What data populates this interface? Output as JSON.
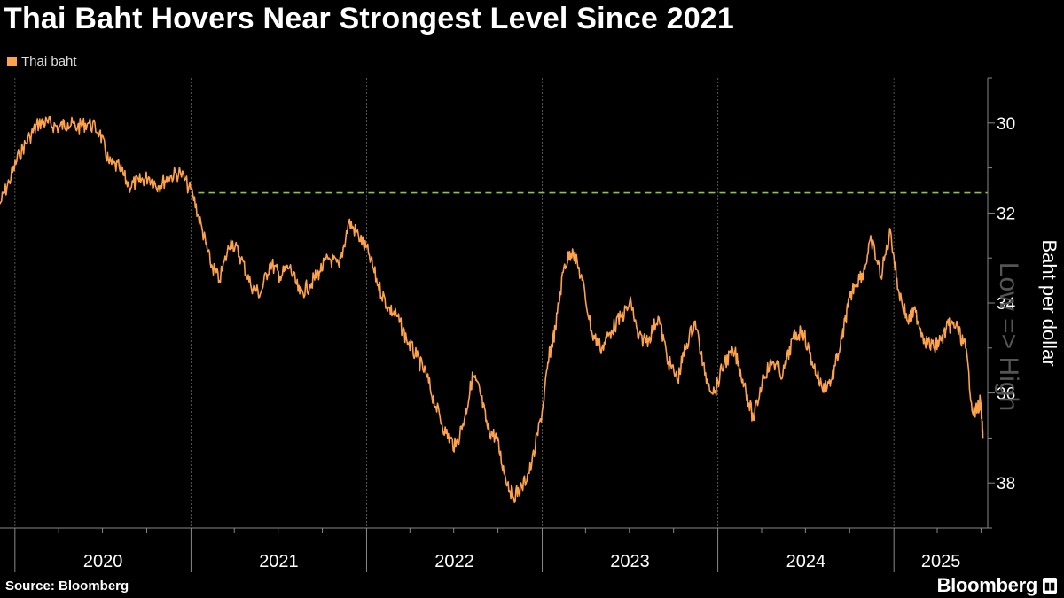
{
  "title": "Thai Baht Hovers Near Strongest Level Since 2021",
  "source": "Source: Bloomberg",
  "brand": "Bloomberg",
  "chart_data": {
    "type": "line",
    "title": "Thai Baht Hovers Near Strongest Level Since 2021",
    "ylabel": "Baht per dollar",
    "axis_annotation": "Low => High",
    "y_inverted": true,
    "ylim": [
      29,
      39
    ],
    "xlim": [
      "2019-12-01",
      "2025-07-15"
    ],
    "yticks": [
      30,
      32,
      34,
      36,
      38
    ],
    "xticks": [
      "2020",
      "2021",
      "2022",
      "2023",
      "2024",
      "2025"
    ],
    "grid": "vertical dotted",
    "legend": "top-left",
    "reference_line": {
      "value": 31.55,
      "style": "dashed",
      "color": "#8dc63f"
    },
    "series": [
      {
        "name": "Thai baht",
        "color": "#ffa24c",
        "x": [
          "2019-12-01",
          "2019-12-20",
          "2020-01-10",
          "2020-02-01",
          "2020-02-20",
          "2020-03-10",
          "2020-04-01",
          "2020-04-20",
          "2020-05-10",
          "2020-06-01",
          "2020-06-25",
          "2020-07-15",
          "2020-08-05",
          "2020-08-25",
          "2020-09-15",
          "2020-10-05",
          "2020-10-25",
          "2020-11-15",
          "2020-12-10",
          "2021-01-05",
          "2021-01-25",
          "2021-02-10",
          "2021-03-01",
          "2021-03-25",
          "2021-04-15",
          "2021-05-05",
          "2021-05-25",
          "2021-06-15",
          "2021-07-05",
          "2021-07-25",
          "2021-08-15",
          "2021-09-05",
          "2021-09-25",
          "2021-10-15",
          "2021-11-05",
          "2021-11-25",
          "2021-12-15",
          "2022-01-05",
          "2022-01-25",
          "2022-02-15",
          "2022-03-05",
          "2022-03-25",
          "2022-04-15",
          "2022-05-05",
          "2022-05-25",
          "2022-06-15",
          "2022-07-05",
          "2022-07-25",
          "2022-08-10",
          "2022-08-25",
          "2022-09-10",
          "2022-09-28",
          "2022-10-15",
          "2022-11-01",
          "2022-11-20",
          "2022-12-10",
          "2023-01-01",
          "2023-01-15",
          "2023-01-28",
          "2023-02-15",
          "2023-03-05",
          "2023-03-25",
          "2023-04-15",
          "2023-05-05",
          "2023-05-25",
          "2023-06-15",
          "2023-07-05",
          "2023-07-20",
          "2023-08-10",
          "2023-08-30",
          "2023-09-20",
          "2023-10-10",
          "2023-10-25",
          "2023-11-15",
          "2023-12-05",
          "2023-12-25",
          "2024-01-15",
          "2024-02-05",
          "2024-02-25",
          "2024-03-15",
          "2024-04-05",
          "2024-04-25",
          "2024-05-15",
          "2024-06-05",
          "2024-06-25",
          "2024-07-15",
          "2024-08-05",
          "2024-08-25",
          "2024-09-15",
          "2024-09-27",
          "2024-10-10",
          "2024-10-30",
          "2024-11-15",
          "2024-12-05",
          "2024-12-25",
          "2025-01-10",
          "2025-01-30",
          "2025-02-15",
          "2025-03-05",
          "2025-03-25",
          "2025-04-10",
          "2025-04-25",
          "2025-05-10",
          "2025-05-30",
          "2025-06-15",
          "2025-06-30",
          "2025-07-05"
        ],
        "values": [
          31.8,
          31.3,
          30.7,
          30.3,
          30.0,
          30.0,
          30.1,
          30.0,
          30.1,
          30.0,
          30.2,
          30.9,
          31.0,
          31.4,
          31.3,
          31.2,
          31.4,
          31.2,
          31.1,
          31.6,
          32.4,
          33.1,
          33.5,
          32.6,
          33.0,
          33.6,
          33.8,
          33.1,
          33.4,
          33.2,
          33.8,
          33.6,
          33.3,
          33.0,
          33.2,
          32.2,
          32.5,
          32.9,
          33.6,
          34.1,
          34.3,
          34.8,
          35.2,
          35.6,
          36.3,
          36.9,
          37.2,
          36.5,
          35.6,
          36.0,
          36.8,
          37.0,
          37.8,
          38.3,
          38.1,
          37.6,
          36.4,
          35.2,
          34.6,
          33.2,
          32.8,
          33.5,
          34.7,
          35.0,
          34.6,
          34.3,
          34.0,
          34.8,
          34.8,
          34.3,
          35.3,
          35.7,
          35.0,
          34.4,
          35.6,
          36.0,
          35.3,
          35.1,
          35.8,
          36.6,
          35.6,
          35.3,
          35.6,
          34.8,
          34.6,
          35.3,
          35.9,
          35.7,
          34.8,
          34.1,
          33.6,
          33.3,
          32.6,
          33.4,
          32.4,
          33.7,
          34.4,
          34.2,
          34.8,
          35.0,
          34.8,
          34.5,
          34.5,
          35.0,
          36.5,
          36.2,
          37.0
        ]
      }
    ]
  }
}
